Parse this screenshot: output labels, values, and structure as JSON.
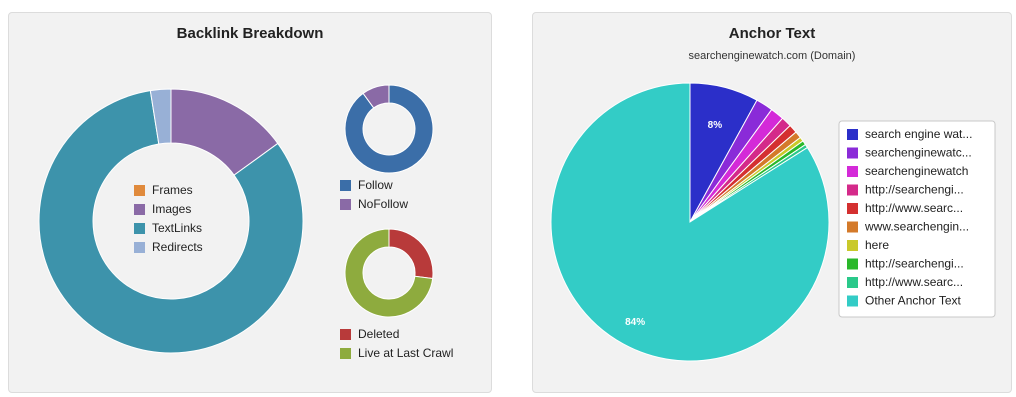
{
  "backlink": {
    "title": "Backlink Breakdown",
    "chart_data": {
      "type": "pie",
      "title": "Backlink Breakdown",
      "donut": true,
      "categories": [
        "Frames",
        "Images",
        "TextLinks",
        "Redirects"
      ],
      "values": [
        0,
        15,
        82.5,
        2.5
      ],
      "colors": [
        "#e08a3c",
        "#8a6aa6",
        "#3d93ab",
        "#98b0d6"
      ],
      "legend_position": "center"
    }
  },
  "follow": {
    "chart_data": {
      "type": "pie",
      "donut": true,
      "categories": [
        "Follow",
        "NoFollow"
      ],
      "values": [
        90,
        10
      ],
      "colors": [
        "#3b6ea8",
        "#8a6aa6"
      ],
      "legend_position": "bottom"
    }
  },
  "crawl": {
    "chart_data": {
      "type": "pie",
      "donut": true,
      "categories": [
        "Deleted",
        "Live at Last Crawl"
      ],
      "values": [
        27,
        73
      ],
      "colors": [
        "#b83a3a",
        "#8eab3e"
      ],
      "legend_position": "bottom"
    }
  },
  "anchor": {
    "title": "Anchor Text",
    "subtitle": "searchenginewatch.com (Domain)",
    "chart_data": {
      "type": "pie",
      "title": "Anchor Text",
      "subtitle": "searchenginewatch.com (Domain)",
      "categories": [
        "search engine wat...",
        "searchenginewatc...",
        "searchenginewatch",
        "http://searchengi...",
        "http://www.searc...",
        "www.searchengin...",
        "here",
        "http://searchengi...",
        "http://www.searc...",
        "Other Anchor Text"
      ],
      "values": [
        8,
        2,
        1.6,
        1.2,
        1,
        0.8,
        0.5,
        0.5,
        0.4,
        84
      ],
      "data_labels": [
        "8%",
        "",
        "",
        "",
        "",
        "",
        "",
        "",
        "",
        "84%"
      ],
      "colors": [
        "#2b2fc9",
        "#8a2bd8",
        "#d42ad8",
        "#d42a8a",
        "#d43030",
        "#d47a2a",
        "#c9c92a",
        "#2ab82a",
        "#2ac98a",
        "#33ccc6"
      ],
      "legend_position": "right"
    }
  }
}
